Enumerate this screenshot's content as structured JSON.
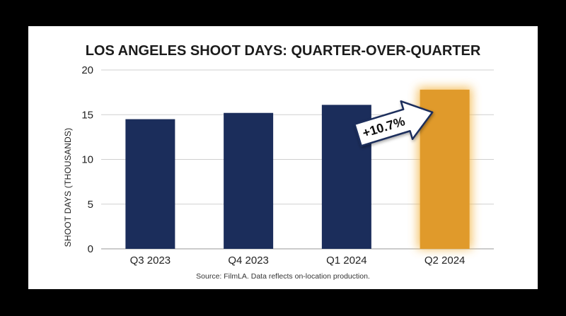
{
  "chart_data": {
    "type": "bar",
    "title": "LOS ANGELES SHOOT DAYS: QUARTER-OVER-QUARTER",
    "xlabel": "",
    "ylabel": "SHOOT DAYS (THOUSANDS)",
    "categories": [
      "Q3 2023",
      "Q4 2023",
      "Q1 2024",
      "Q2 2024"
    ],
    "values": [
      14.5,
      15.2,
      16.1,
      17.8
    ],
    "ylim": [
      0,
      20
    ],
    "yticks": [
      "0",
      "5",
      "10",
      "15",
      "20"
    ],
    "grid": true,
    "colors": {
      "default": "#1b2d5b",
      "highlight": "#e09a2b",
      "gridline": "#d0d0d0"
    },
    "highlight_index": 3,
    "annotation": "+10.7%",
    "source": "Source: FilmLA. Data reflects on-location production."
  }
}
